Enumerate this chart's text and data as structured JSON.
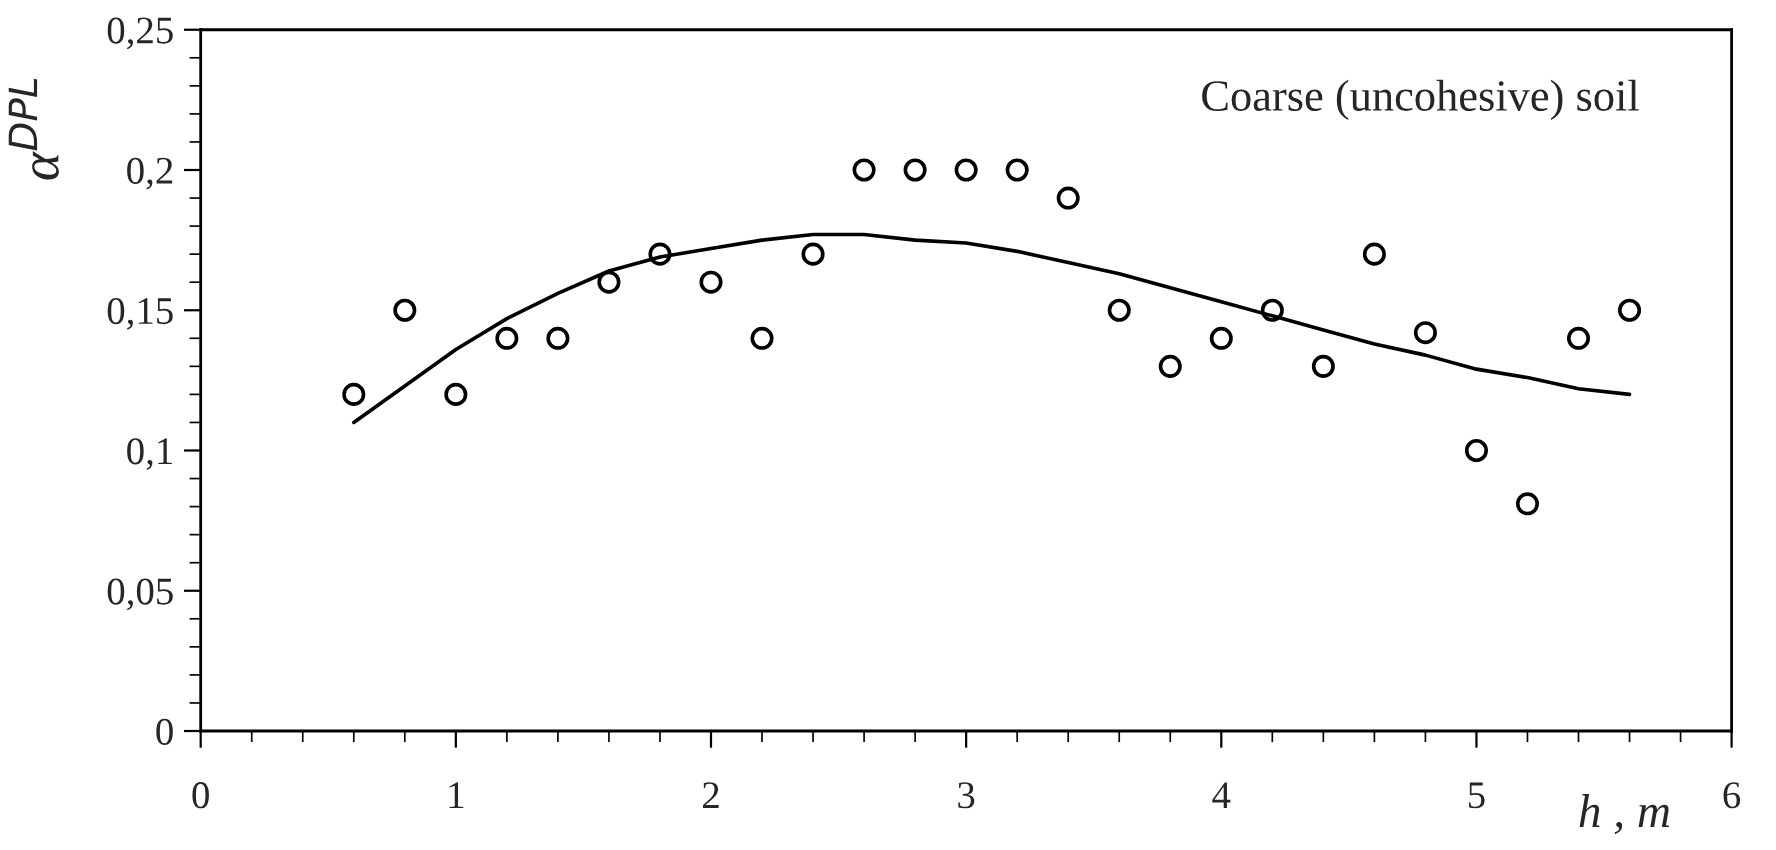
{
  "chart_data": {
    "type": "scatter",
    "xlabel": "h , m",
    "ylabel": "α$^{DPL}$",
    "annotations": [
      "Coarse (uncohesive) soil"
    ],
    "series": [
      {
        "color": "#000000",
        "marker": "circle",
        "x": [
          0.6,
          0.8,
          1.0,
          1.2,
          1.4,
          1.6,
          1.8,
          2.0,
          2.2,
          2.4,
          2.6,
          2.8,
          3.0,
          3.2,
          3.4,
          3.6,
          3.8,
          4.0,
          4.2,
          4.4,
          4.6,
          4.8,
          5.0,
          5.2,
          5.4,
          5.6
        ],
        "values": [
          0.12,
          0.15,
          0.12,
          0.14,
          0.14,
          0.16,
          0.17,
          0.16,
          0.14,
          0.17,
          0.2,
          0.2,
          0.2,
          0.2,
          0.19,
          0.15,
          0.13,
          0.14,
          0.15,
          0.13,
          0.17,
          0.142,
          0.1,
          0.081,
          0.14,
          0.15
        ]
      },
      {
        "type": "line",
        "color": "#000000",
        "x": [
          0.6,
          0.8,
          1.0,
          1.2,
          1.4,
          1.6,
          1.8,
          2.0,
          2.2,
          2.4,
          2.6,
          2.8,
          3.0,
          3.2,
          3.4,
          3.6,
          3.8,
          4.0,
          4.2,
          4.4,
          4.6,
          4.8,
          5.0,
          5.2,
          5.4,
          5.6
        ],
        "values": [
          0.11,
          0.123,
          0.136,
          0.147,
          0.156,
          0.164,
          0.169,
          0.172,
          0.175,
          0.177,
          0.177,
          0.175,
          0.174,
          0.171,
          0.167,
          0.163,
          0.158,
          0.153,
          0.148,
          0.143,
          0.138,
          0.134,
          0.129,
          0.126,
          0.122,
          0.12
        ]
      }
    ],
    "xlim": [
      0,
      6
    ],
    "xticks": [
      0,
      1,
      2,
      3,
      4,
      5,
      6
    ],
    "ylim": [
      0,
      0.25
    ],
    "yticks": [
      0,
      {
        "value": 0.05,
        "label": "0,05"
      },
      {
        "value": 0.1,
        "label": "0,1"
      },
      {
        "value": 0.15,
        "label": "0,15"
      },
      {
        "value": 0.2,
        "label": "0,2"
      },
      {
        "value": 0.25,
        "label": "0,25"
      }
    ],
    "grid": false,
    "legend": false
  }
}
